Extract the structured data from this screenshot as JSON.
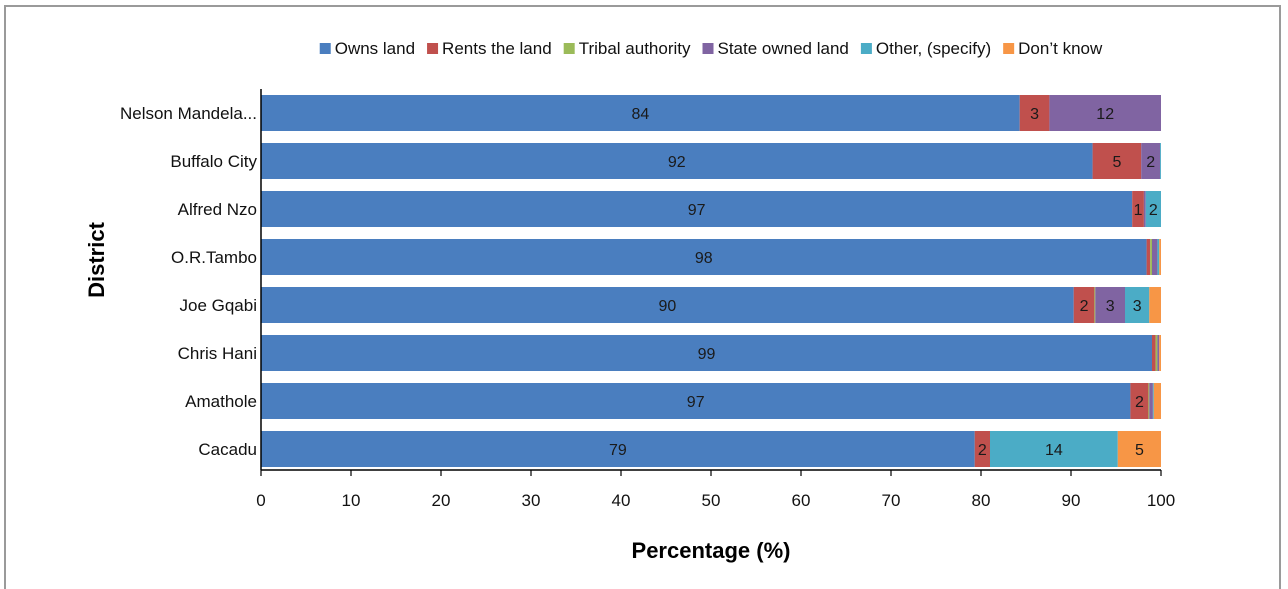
{
  "chart_data": {
    "type": "bar",
    "orientation": "horizontal",
    "stacked": true,
    "title": "",
    "xlabel": "Percentage (%)",
    "ylabel": "District",
    "xlim": [
      0,
      100
    ],
    "xticks": [
      0,
      10,
      20,
      30,
      40,
      50,
      60,
      70,
      80,
      90,
      100
    ],
    "grid": false,
    "legend_position": "top",
    "categories": [
      "Nelson Mandela...",
      "Buffalo City",
      "Alfred Nzo",
      "O.R.Tambo",
      "Joe Gqabi",
      "Chris Hani",
      "Amathole",
      "Cacadu"
    ],
    "series": [
      {
        "name": "Owns land",
        "color": "#4a7ebf",
        "values": [
          84.3,
          92.4,
          96.8,
          98.4,
          90.3,
          99.0,
          96.6,
          79.3
        ]
      },
      {
        "name": "Rents the land",
        "color": "#c0504d",
        "values": [
          3.3,
          5.4,
          1.3,
          0.4,
          2.3,
          0.4,
          2.0,
          1.7
        ]
      },
      {
        "name": "Tribal authority",
        "color": "#9bbb59",
        "values": [
          0,
          0,
          0,
          0.2,
          0.1,
          0.2,
          0.1,
          0
        ]
      },
      {
        "name": "State owned land",
        "color": "#8064a2",
        "values": [
          12.4,
          2.1,
          0.2,
          0.6,
          3.3,
          0.2,
          0.4,
          0
        ]
      },
      {
        "name": "Other, (specify)",
        "color": "#4bacc6",
        "values": [
          0,
          0.1,
          1.7,
          0.2,
          2.7,
          0,
          0.1,
          14.2
        ]
      },
      {
        "name": "Don’t know",
        "color": "#f79646",
        "values": [
          0,
          0,
          0,
          0.2,
          1.3,
          0.2,
          0.8,
          4.8
        ]
      }
    ],
    "data_labels": [
      [
        "84",
        "3",
        "",
        "12",
        "",
        ""
      ],
      [
        "92",
        "5",
        "",
        "2",
        "",
        ""
      ],
      [
        "97",
        "1",
        "",
        "",
        "2",
        ""
      ],
      [
        "98",
        "",
        "",
        "",
        "",
        ""
      ],
      [
        "90",
        "2",
        "",
        "3",
        "3",
        ""
      ],
      [
        "99",
        "",
        "",
        "",
        "",
        ""
      ],
      [
        "97",
        "2",
        "",
        "",
        "",
        ""
      ],
      [
        "79",
        "2",
        "",
        "",
        "14",
        "5"
      ]
    ]
  }
}
